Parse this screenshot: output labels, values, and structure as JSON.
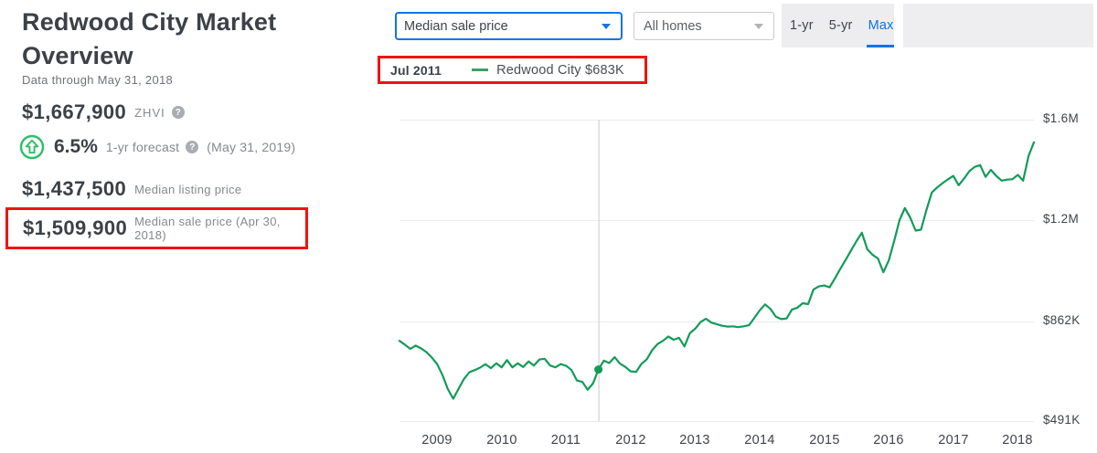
{
  "page": {
    "title": "Redwood City Market Overview",
    "subtitle": "Data through May 31, 2018"
  },
  "stats": {
    "zhvi": {
      "value": "$1,667,900",
      "label": "ZHVI"
    },
    "forecast": {
      "value": "6.5%",
      "label": "1-yr forecast",
      "date": "(May 31, 2019)"
    },
    "listing": {
      "value": "$1,437,500",
      "label": "Median listing price"
    },
    "sale": {
      "value": "$1,509,900",
      "label": "Median sale price (Apr 30, 2018)"
    }
  },
  "icons": {
    "help": "?"
  },
  "controls": {
    "metric_select": {
      "value": "Median sale price"
    },
    "type_select": {
      "value": "All homes"
    },
    "ranges": [
      {
        "label": "1-yr",
        "active": false
      },
      {
        "label": "5-yr",
        "active": false
      },
      {
        "label": "Max",
        "active": true
      }
    ]
  },
  "tooltip": {
    "date": "Jul 2011",
    "series_label": "Redwood City $683K"
  },
  "colors": {
    "accent_blue": "#1173e6",
    "line_green": "#129b58",
    "icon_green": "#2fbe68",
    "annotation_red": "#ee1312",
    "grid_gray": "#e9eaeb",
    "cursor_gray": "#c9cbcd",
    "text_dark": "#3b4147",
    "text_gray": "#85898d"
  },
  "chart_data": {
    "type": "line",
    "title": "Median sale price — Redwood City (Max range)",
    "unit": "USD thousands",
    "start_month": "2008-06",
    "end_month": "2018-04",
    "interval": "monthly",
    "y_ticks": [
      {
        "label": "$1.6M",
        "value": 1600
      },
      {
        "label": "$1.2M",
        "value": 1200
      },
      {
        "label": "$862K",
        "value": 862
      },
      {
        "label": "$491K",
        "value": 491
      }
    ],
    "x_ticks": [
      {
        "label": "2009",
        "month_index": 7
      },
      {
        "label": "2010",
        "month_index": 19
      },
      {
        "label": "2011",
        "month_index": 31
      },
      {
        "label": "2012",
        "month_index": 43
      },
      {
        "label": "2013",
        "month_index": 55
      },
      {
        "label": "2014",
        "month_index": 67
      },
      {
        "label": "2015",
        "month_index": 79
      },
      {
        "label": "2016",
        "month_index": 91
      },
      {
        "label": "2017",
        "month_index": 103
      },
      {
        "label": "2018",
        "month_index": 115
      }
    ],
    "cursor": {
      "month_index": 37,
      "month_label": "Jul 2011",
      "value": 683
    },
    "series": [
      {
        "name": "Redwood City",
        "color": "#129b58",
        "values": [
          790,
          776,
          760,
          772,
          762,
          748,
          728,
          703,
          662,
          610,
          574,
          612,
          648,
          673,
          681,
          690,
          703,
          688,
          706,
          691,
          718,
          691,
          706,
          692,
          713,
          698,
          720,
          723,
          698,
          691,
          703,
          697,
          681,
          642,
          637,
          608,
          631,
          683,
          716,
          707,
          729,
          705,
          693,
          676,
          674,
          704,
          721,
          755,
          778,
          790,
          806,
          794,
          801,
          769,
          818,
          835,
          860,
          871,
          858,
          852,
          846,
          843,
          844,
          841,
          844,
          848,
          874,
          899,
          919,
          904,
          878,
          870,
          872,
          902,
          908,
          923,
          920,
          969,
          979,
          982,
          976,
          1006,
          1038,
          1068,
          1099,
          1130,
          1158,
          1103,
          1084,
          1072,
          1026,
          1065,
          1130,
          1200,
          1248,
          1210,
          1165,
          1168,
          1240,
          1310,
          1330,
          1347,
          1362,
          1376,
          1339,
          1365,
          1395,
          1412,
          1419,
          1372,
          1400,
          1376,
          1357,
          1361,
          1363,
          1380,
          1357,
          1455,
          1510
        ]
      }
    ]
  }
}
